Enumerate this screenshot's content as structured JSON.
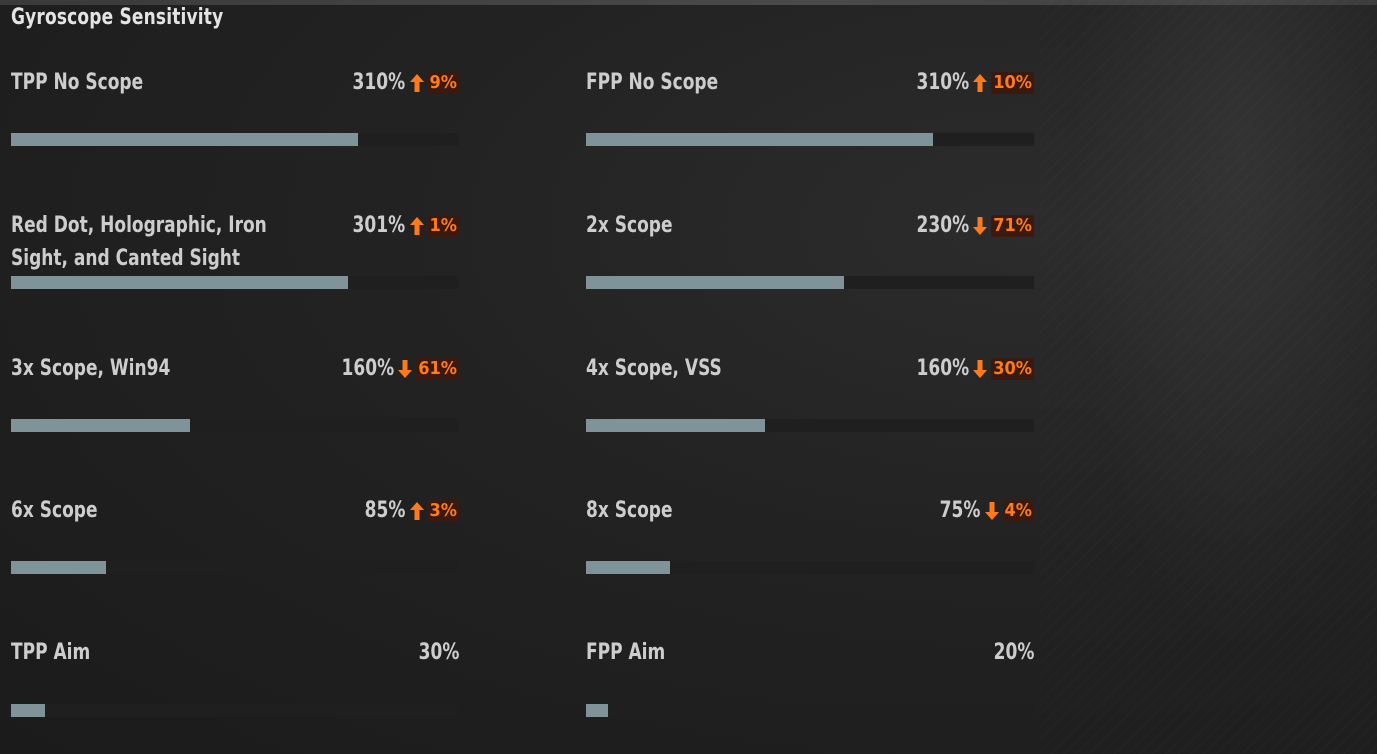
{
  "section_title": "Gyroscope Sensitivity",
  "max_percent": 400,
  "colors": {
    "bar_fill": "#7f9399",
    "bar_track": "#1f1f1f",
    "accent_orange": "#ff7a1a"
  },
  "settings": [
    {
      "label": "TPP No Scope",
      "value": "310%",
      "percent": 310,
      "direction": "up",
      "change": "9%"
    },
    {
      "label": "FPP No Scope",
      "value": "310%",
      "percent": 310,
      "direction": "up",
      "change": "10%"
    },
    {
      "label": "Red Dot, Holographic, Iron Sight, and Canted Sight",
      "value": "301%",
      "percent": 301,
      "direction": "up",
      "change": "1%"
    },
    {
      "label": "2x Scope",
      "value": "230%",
      "percent": 230,
      "direction": "down",
      "change": "71%"
    },
    {
      "label": "3x Scope, Win94",
      "value": "160%",
      "percent": 160,
      "direction": "down",
      "change": "61%"
    },
    {
      "label": "4x Scope, VSS",
      "value": "160%",
      "percent": 160,
      "direction": "down",
      "change": "30%"
    },
    {
      "label": "6x Scope",
      "value": "85%",
      "percent": 85,
      "direction": "up",
      "change": "3%"
    },
    {
      "label": "8x Scope",
      "value": "75%",
      "percent": 75,
      "direction": "down",
      "change": "4%"
    },
    {
      "label": "TPP Aim",
      "value": "30%",
      "percent": 30,
      "direction": "",
      "change": ""
    },
    {
      "label": "FPP Aim",
      "value": "20%",
      "percent": 20,
      "direction": "",
      "change": ""
    }
  ]
}
